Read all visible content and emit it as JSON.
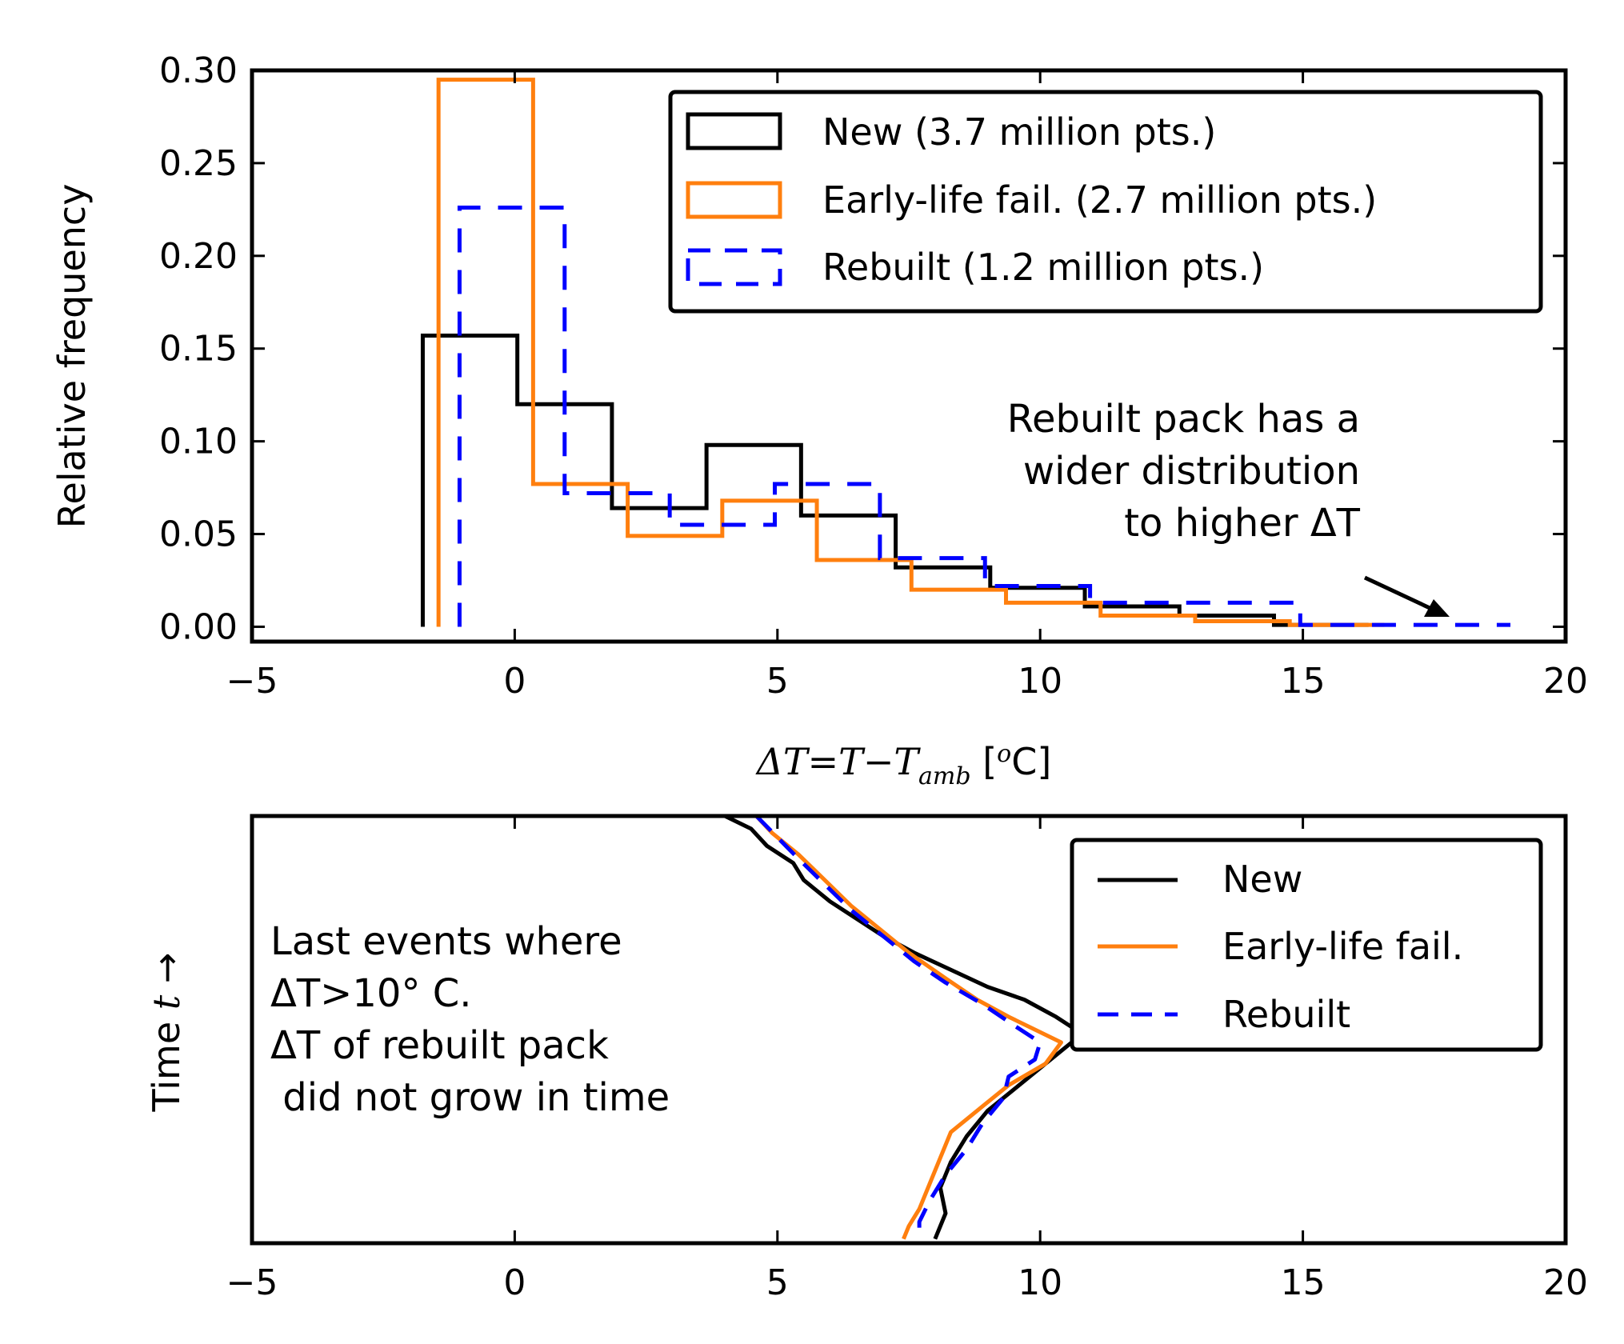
{
  "chart_data": [
    {
      "type": "histogram",
      "xlabel": "ΔT=T−T_amb [°C]",
      "ylabel": "Relative frequency",
      "xlim": [
        -5,
        20
      ],
      "ylim": [
        -0.008,
        0.3
      ],
      "xticks": [
        -5,
        0,
        5,
        10,
        15,
        20
      ],
      "xtick_labels": [
        "−5",
        "0",
        "5",
        "10",
        "15",
        "20"
      ],
      "yticks": [
        0.0,
        0.05,
        0.1,
        0.15,
        0.2,
        0.25,
        0.3
      ],
      "ytick_labels": [
        "0.00",
        "0.05",
        "0.10",
        "0.15",
        "0.20",
        "0.25",
        "0.30"
      ],
      "legend_position": "top-right",
      "series": [
        {
          "name": "New (3.7 million pts.)",
          "color": "#000000",
          "style": "solid",
          "edges": [
            -1.75,
            0.05,
            1.85,
            3.65,
            5.45,
            7.25,
            9.05,
            10.85,
            12.65,
            14.45,
            16.25
          ],
          "values": [
            0.157,
            0.12,
            0.064,
            0.098,
            0.06,
            0.032,
            0.021,
            0.011,
            0.006,
            0.001
          ]
        },
        {
          "name": "Early-life fail. (2.7 million pts.)",
          "color": "#ff7f0e",
          "style": "solid",
          "edges": [
            -1.45,
            0.35,
            2.15,
            3.95,
            5.75,
            7.55,
            9.35,
            11.15,
            12.95,
            14.75,
            16.55
          ],
          "values": [
            0.295,
            0.077,
            0.049,
            0.068,
            0.036,
            0.02,
            0.013,
            0.006,
            0.003,
            0.001
          ]
        },
        {
          "name": "Rebuilt (1.2 million pts.)",
          "color": "#0000ff",
          "style": "dashed",
          "edges": [
            -1.05,
            0.95,
            2.95,
            4.95,
            6.95,
            8.95,
            10.95,
            12.95,
            14.95,
            16.95,
            18.95
          ],
          "values": [
            0.226,
            0.072,
            0.055,
            0.077,
            0.037,
            0.022,
            0.013,
            0.013,
            0.001,
            0.001
          ]
        }
      ],
      "annotation": {
        "lines": [
          "Rebuilt pack has a",
          "wider distribution",
          "to higher ΔT"
        ],
        "arrow_to": [
          17.7,
          0.009
        ]
      }
    },
    {
      "type": "line",
      "xlabel": "",
      "ylabel": "Time t →",
      "xlim": [
        -5,
        20
      ],
      "yticks": [],
      "xticks": [
        -5,
        0,
        5,
        10,
        15,
        20
      ],
      "xtick_labels": [
        "−5",
        "0",
        "5",
        "10",
        "15",
        "20"
      ],
      "legend_position": "top-right",
      "series": [
        {
          "name": "New",
          "color": "#000000",
          "style": "solid",
          "x": [
            4.0,
            4.5,
            4.8,
            5.3,
            5.5,
            6.0,
            6.5,
            7.0,
            7.6,
            8.3,
            9.0,
            9.7,
            10.3,
            10.8,
            10.4,
            10.0,
            9.5,
            9.0,
            8.6,
            8.3,
            8.1,
            8.2,
            8.0
          ],
          "t": [
            1.0,
            0.97,
            0.93,
            0.89,
            0.85,
            0.8,
            0.76,
            0.72,
            0.68,
            0.64,
            0.6,
            0.57,
            0.53,
            0.49,
            0.45,
            0.41,
            0.36,
            0.31,
            0.25,
            0.19,
            0.13,
            0.07,
            0.01
          ]
        },
        {
          "name": "Early-life fail.",
          "color": "#ff7f0e",
          "style": "solid",
          "x": [
            4.6,
            4.9,
            5.4,
            5.9,
            6.4,
            7.0,
            7.5,
            8.2,
            8.8,
            9.4,
            9.9,
            10.4,
            10.1,
            9.4,
            8.9,
            8.3,
            8.1,
            7.9,
            7.7,
            7.5,
            7.4
          ],
          "t": [
            1.0,
            0.96,
            0.91,
            0.85,
            0.79,
            0.73,
            0.68,
            0.62,
            0.57,
            0.53,
            0.5,
            0.47,
            0.42,
            0.37,
            0.32,
            0.26,
            0.2,
            0.14,
            0.08,
            0.04,
            0.01
          ]
        },
        {
          "name": "Rebuilt",
          "color": "#0000ff",
          "style": "dashed",
          "x": [
            4.6,
            5.0,
            5.4,
            5.9,
            6.4,
            7.0,
            7.6,
            8.2,
            8.9,
            9.5,
            10.0,
            9.9,
            9.4,
            9.3,
            8.9,
            8.6,
            8.2,
            7.9,
            7.7,
            7.7
          ],
          "t": [
            1.0,
            0.95,
            0.9,
            0.84,
            0.78,
            0.72,
            0.66,
            0.61,
            0.56,
            0.51,
            0.47,
            0.43,
            0.39,
            0.34,
            0.28,
            0.22,
            0.16,
            0.1,
            0.05,
            0.01
          ]
        }
      ],
      "annotation": {
        "lines": [
          "Last events where",
          "ΔT>10° C.",
          "ΔT of rebuilt pack",
          " did not grow in time"
        ]
      }
    }
  ]
}
